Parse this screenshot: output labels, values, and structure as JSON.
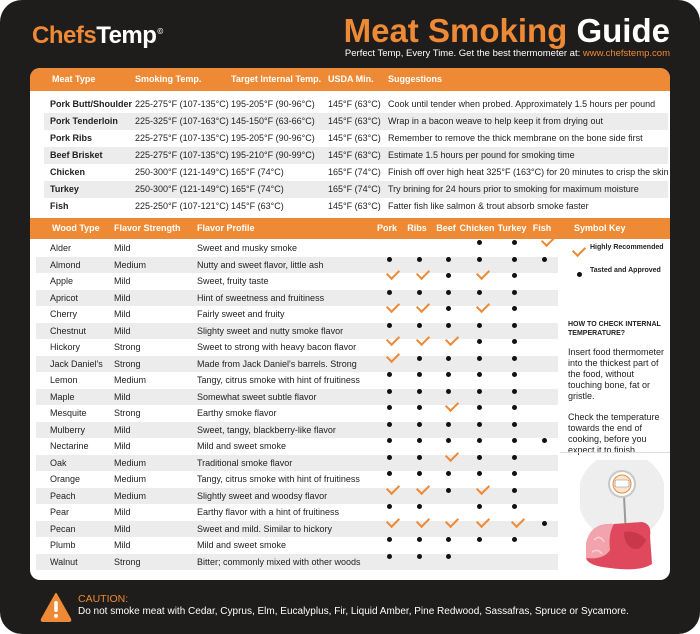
{
  "brand": {
    "name_part1": "Chefs",
    "name_part2": "Temp",
    "reg": "©"
  },
  "title": {
    "part1": "Meat Smoking ",
    "part2": "Guide"
  },
  "tagline": {
    "text": "Perfect Temp, Every Time. Get the best thermometer at: ",
    "url": "www.chefstemp.com"
  },
  "meat_table": {
    "headers": [
      "Meat Type",
      "Smoking Temp.",
      "Target Internal Temp.",
      "USDA Min.",
      "Suggestions"
    ],
    "rows": [
      {
        "type": "Pork Butt/Shoulder",
        "smoking": "225-275°F (107-135°C)",
        "target": "195-205°F (90-96°C)",
        "usda": "145°F (63°C)",
        "tip": "Cook until tender when probed. Approximately 1.5 hours per pound"
      },
      {
        "type": "Pork Tenderloin",
        "smoking": "225-325°F (107-163°C)",
        "target": "145-150°F (63-66°C)",
        "usda": "145°F (63°C)",
        "tip": "Wrap in a bacon weave to help keep it from drying out"
      },
      {
        "type": "Pork Ribs",
        "smoking": "225-275°F (107-135°C)",
        "target": "195-205°F (90-96°C)",
        "usda": "145°F (63°C)",
        "tip": "Remember to remove the thick membrane on the bone side first"
      },
      {
        "type": "Beef Brisket",
        "smoking": "225-275°F (107-135°C)",
        "target": "195-210°F (90-99°C)",
        "usda": "145°F (63°C)",
        "tip": "Estimate 1.5 hours per pound for smoking time"
      },
      {
        "type": "Chicken",
        "smoking": "250-300°F (121-149°C)",
        "target": "165°F (74°C)",
        "usda": "165°F (74°C)",
        "tip": "Finish off over high heat 325°F (163°C) for 20 minutes to crisp the skin"
      },
      {
        "type": "Turkey",
        "smoking": "250-300°F (121-149°C)",
        "target": "165°F (74°C)",
        "usda": "165°F (74°C)",
        "tip": "Try brining for 24 hours prior to smoking for maximum moisture"
      },
      {
        "type": "Fish",
        "smoking": "225-250°F (107-121°C)",
        "target": "145°F (63°C)",
        "usda": "145°F (63°C)",
        "tip": "Fatter fish like salmon & trout absorb smoke faster"
      }
    ]
  },
  "wood_table": {
    "headers": {
      "wood": "Wood Type",
      "strength": "Flavor Strength",
      "profile": "Flavor Profile",
      "pork": "Pork",
      "ribs": "Ribs",
      "beef": "Beef",
      "chicken": "Chicken",
      "turkey": "Turkey",
      "fish": "Fish",
      "key": "Symbol Key"
    },
    "rows": [
      {
        "wood": "Alder",
        "strength": "Mild",
        "profile": "Sweet and musky smoke",
        "marks": [
          "",
          "",
          "",
          "d",
          "d",
          "c"
        ]
      },
      {
        "wood": "Almond",
        "strength": "Medium",
        "profile": "Nutty and sweet flavor, little ash",
        "marks": [
          "d",
          "d",
          "d",
          "d",
          "d",
          "d"
        ]
      },
      {
        "wood": "Apple",
        "strength": "Mild",
        "profile": "Sweet, fruity taste",
        "marks": [
          "c",
          "c",
          "d",
          "c",
          "d",
          ""
        ]
      },
      {
        "wood": "Apricot",
        "strength": "Mild",
        "profile": "Hint of sweetness and fruitiness",
        "marks": [
          "d",
          "d",
          "d",
          "d",
          "d",
          ""
        ]
      },
      {
        "wood": "Cherry",
        "strength": "Mild",
        "profile": "Fairly sweet and fruity",
        "marks": [
          "c",
          "c",
          "d",
          "c",
          "d",
          ""
        ]
      },
      {
        "wood": "Chestnut",
        "strength": "Mild",
        "profile": "Slighty sweet and nutty smoke flavor",
        "marks": [
          "d",
          "d",
          "d",
          "d",
          "d",
          ""
        ]
      },
      {
        "wood": "Hickory",
        "strength": "Strong",
        "profile": "Sweet to strong with heavy bacon flavor",
        "marks": [
          "c",
          "c",
          "c",
          "d",
          "d",
          ""
        ]
      },
      {
        "wood": "Jack Daniel's",
        "strength": "Strong",
        "profile": "Made from Jack Daniel's barrels. Strong",
        "marks": [
          "c",
          "d",
          "d",
          "d",
          "d",
          ""
        ]
      },
      {
        "wood": "Lemon",
        "strength": "Medium",
        "profile": "Tangy, citrus smoke with hint of fruitiness",
        "marks": [
          "d",
          "d",
          "d",
          "d",
          "d",
          ""
        ]
      },
      {
        "wood": "Maple",
        "strength": "Mild",
        "profile": "Somewhat sweet subtle flavor",
        "marks": [
          "d",
          "d",
          "d",
          "d",
          "d",
          ""
        ]
      },
      {
        "wood": "Mesquite",
        "strength": "Strong",
        "profile": "Earthy smoke flavor",
        "marks": [
          "d",
          "d",
          "c",
          "d",
          "d",
          ""
        ]
      },
      {
        "wood": "Mulberry",
        "strength": "Mild",
        "profile": "Sweet, tangy, blackberry-like flavor",
        "marks": [
          "d",
          "d",
          "d",
          "d",
          "d",
          ""
        ]
      },
      {
        "wood": "Nectarine",
        "strength": "Mild",
        "profile": "Mild and sweet smoke",
        "marks": [
          "d",
          "d",
          "d",
          "d",
          "d",
          "d"
        ]
      },
      {
        "wood": "Oak",
        "strength": "Medium",
        "profile": "Traditional smoke flavor",
        "marks": [
          "d",
          "d",
          "c",
          "d",
          "d",
          ""
        ]
      },
      {
        "wood": "Orange",
        "strength": "Medium",
        "profile": "Tangy, citrus smoke with hint of fruitiness",
        "marks": [
          "d",
          "d",
          "d",
          "d",
          "d",
          ""
        ]
      },
      {
        "wood": "Peach",
        "strength": "Medium",
        "profile": "Slightly sweet and woodsy flavor",
        "marks": [
          "c",
          "c",
          "d",
          "c",
          "d",
          ""
        ]
      },
      {
        "wood": "Pear",
        "strength": "Mild",
        "profile": "Earthy flavor with a hint of fruitiness",
        "marks": [
          "d",
          "d",
          "",
          "d",
          "d",
          ""
        ]
      },
      {
        "wood": "Pecan",
        "strength": "Mild",
        "profile": "Sweet and mild. Similar to hickory",
        "marks": [
          "c",
          "c",
          "c",
          "c",
          "c",
          "d"
        ]
      },
      {
        "wood": "Plumb",
        "strength": "Mild",
        "profile": "Mild and sweet smoke",
        "marks": [
          "d",
          "d",
          "d",
          "d",
          "d",
          ""
        ]
      },
      {
        "wood": "Walnut",
        "strength": "Strong",
        "profile": "Bitter; commonly mixed with other woods",
        "marks": [
          "d",
          "d",
          "d",
          "",
          "",
          ""
        ]
      }
    ]
  },
  "symbol_key": {
    "highly": "Highly Recommended",
    "tasted": "Tasted and Approved"
  },
  "how_to": {
    "title": "HOW TO CHECK INTERNAL TEMPERATURE?",
    "p1": "Insert food thermometer into the thickest part of the food, without touching bone, fat or gristle.",
    "p2": "Check the temperature towards the end of cooking, before you expect it to finish."
  },
  "caution": {
    "title": "CAUTION:",
    "text": "Do not smoke meat with Cedar, Cyprus, Elm, Eucalyplus, Fir, Liquid Amber, Pine Redwood, Sassafras, Spruce or Sycamore."
  },
  "colors": {
    "accent": "#ee8a35",
    "background": "#1f1c1c",
    "stripe": "#ececec"
  },
  "icons": {
    "check": "check-icon",
    "dot": "dot-icon",
    "warning": "warning-icon",
    "illustration": "meat-thermometer-illustration"
  }
}
